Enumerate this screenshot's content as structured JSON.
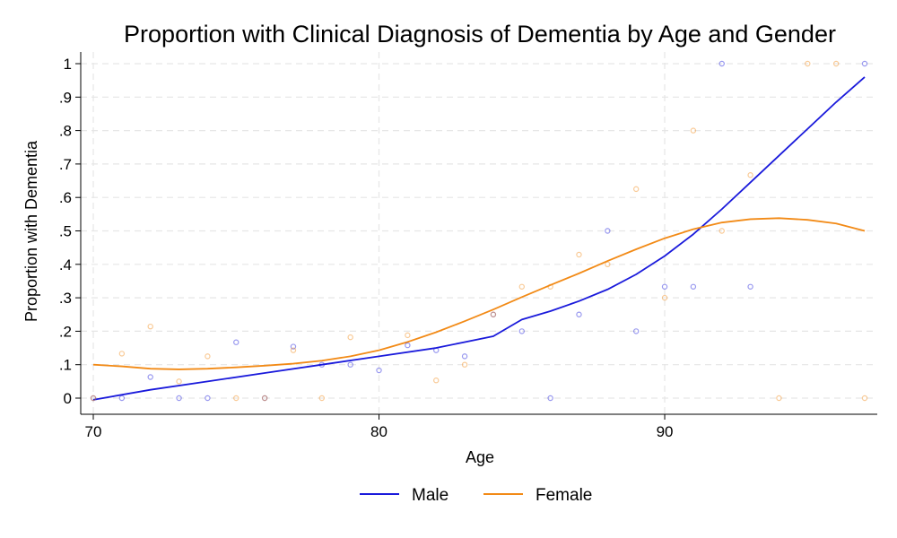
{
  "chart_data": {
    "type": "line",
    "title": "Proportion with Clinical Diagnosis of Dementia by Age and Gender",
    "xlabel": "Age",
    "ylabel": "Proportion with Dementia",
    "xlim": [
      70,
      97
    ],
    "ylim": [
      0,
      1
    ],
    "x_ticks": [
      70,
      80,
      90
    ],
    "y_ticks": [
      {
        "value": 0,
        "label": "0"
      },
      {
        "value": 0.1,
        "label": ".1"
      },
      {
        "value": 0.2,
        "label": ".2"
      },
      {
        "value": 0.3,
        "label": ".3"
      },
      {
        "value": 0.4,
        "label": ".4"
      },
      {
        "value": 0.5,
        "label": ".5"
      },
      {
        "value": 0.6,
        "label": ".6"
      },
      {
        "value": 0.7,
        "label": ".7"
      },
      {
        "value": 0.8,
        "label": ".8"
      },
      {
        "value": 0.9,
        "label": ".9"
      },
      {
        "value": 1,
        "label": "1"
      }
    ],
    "grid": true,
    "legend_position": "bottom",
    "series": [
      {
        "name": "Male",
        "color": "#1a1adb",
        "smooth": {
          "x": [
            70,
            72,
            74,
            76,
            78,
            80,
            82,
            84,
            85,
            86,
            87,
            88,
            89,
            90,
            91,
            92,
            93,
            94,
            95,
            96,
            97
          ],
          "y": [
            -0.005,
            0.025,
            0.05,
            0.075,
            0.1,
            0.125,
            0.15,
            0.185,
            0.235,
            0.26,
            0.29,
            0.325,
            0.37,
            0.425,
            0.49,
            0.565,
            0.645,
            0.725,
            0.805,
            0.885,
            0.96
          ]
        },
        "points": {
          "x": [
            70,
            71,
            72,
            73,
            74,
            75,
            76,
            77,
            78,
            79,
            80,
            81,
            82,
            83,
            84,
            85,
            86,
            87,
            88,
            89,
            90,
            91,
            92,
            93,
            97
          ],
          "y": [
            0,
            0,
            0.063,
            0,
            0,
            0.167,
            0,
            0.154,
            0.1,
            0.1,
            0.083,
            0.158,
            0.143,
            0.125,
            0.25,
            0.2,
            0,
            0.25,
            0.5,
            0.2,
            0.333,
            0.333,
            1,
            0.333,
            1
          ]
        }
      },
      {
        "name": "Female",
        "color": "#f28a16",
        "smooth": {
          "x": [
            70,
            71,
            72,
            73,
            74,
            75,
            76,
            77,
            78,
            79,
            80,
            81,
            82,
            83,
            84,
            85,
            86,
            87,
            88,
            89,
            90,
            91,
            92,
            93,
            94,
            95,
            96,
            97
          ],
          "y": [
            0.1,
            0.095,
            0.088,
            0.086,
            0.088,
            0.092,
            0.097,
            0.103,
            0.112,
            0.125,
            0.143,
            0.168,
            0.197,
            0.23,
            0.265,
            0.302,
            0.338,
            0.373,
            0.41,
            0.445,
            0.478,
            0.505,
            0.525,
            0.535,
            0.538,
            0.533,
            0.522,
            0.5
          ]
        },
        "points": {
          "x": [
            70,
            71,
            72,
            73,
            74,
            75,
            76,
            77,
            78,
            79,
            81,
            82,
            83,
            84,
            85,
            86,
            87,
            88,
            89,
            90,
            91,
            92,
            93,
            94,
            95,
            96,
            97
          ],
          "y": [
            0,
            0.133,
            0.214,
            0.05,
            0.125,
            0,
            0,
            0.143,
            0,
            0.182,
            0.188,
            0.053,
            0.1,
            0.25,
            0.333,
            0.333,
            0.429,
            0.4,
            0.625,
            0.3,
            0.8,
            0.5,
            0.667,
            0,
            1,
            1,
            0
          ]
        }
      }
    ]
  }
}
